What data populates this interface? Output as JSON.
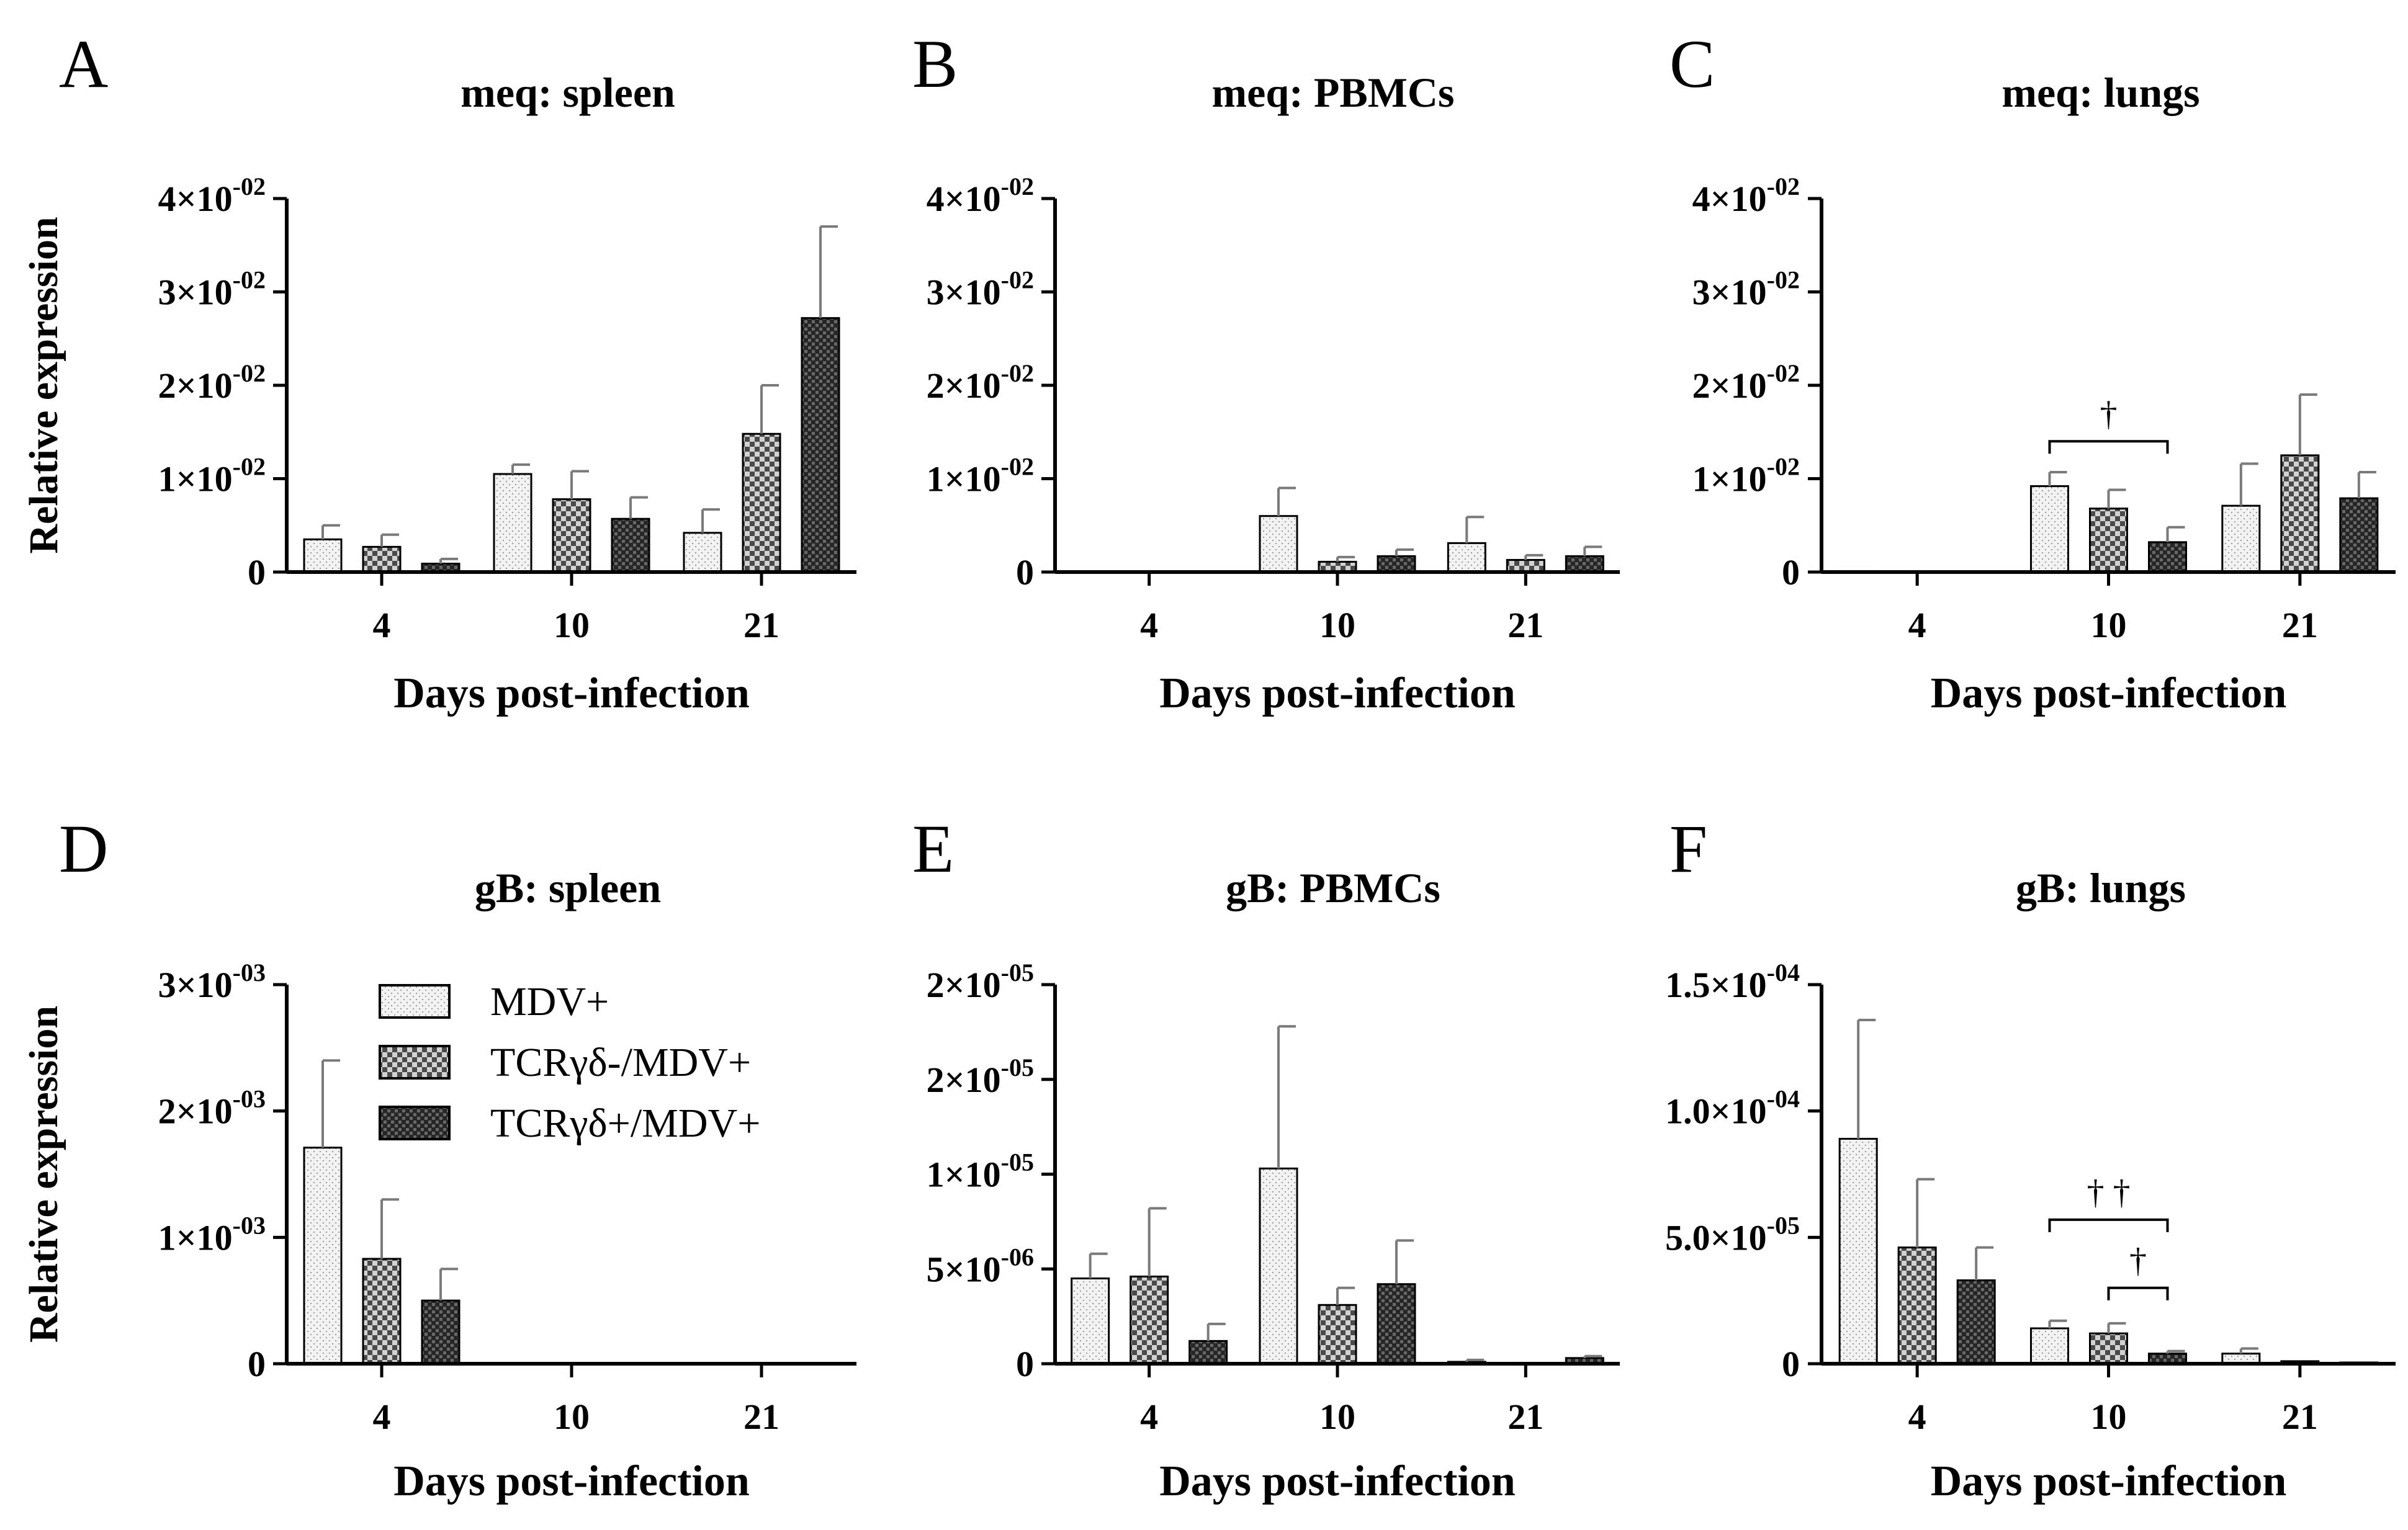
{
  "figure": {
    "legend": {
      "entries": [
        {
          "label": "MDV+",
          "pattern": "light"
        },
        {
          "label": "TCRγδ-/MDV+",
          "pattern": "mid"
        },
        {
          "label": "TCRγδ+/MDV+",
          "pattern": "dark"
        }
      ]
    }
  },
  "chart_data": [
    {
      "panel": "A",
      "type": "bar",
      "title": "meq: spleen",
      "xlabel": "Days post-infection",
      "ylabel": "Relative expression",
      "categories": [
        "4",
        "10",
        "21"
      ],
      "ylim": [
        0,
        0.04
      ],
      "yticks": [
        0,
        0.01,
        0.02,
        0.03,
        0.04
      ],
      "ytick_labels": [
        {
          "m": "0"
        },
        {
          "m": "1×10",
          "e": "-02"
        },
        {
          "m": "2×10",
          "e": "-02"
        },
        {
          "m": "3×10",
          "e": "-02"
        },
        {
          "m": "4×10",
          "e": "-02"
        }
      ],
      "series": [
        {
          "name": "MDV+",
          "values": [
            0.0035,
            0.0105,
            0.0042
          ],
          "errors": [
            0.0015,
            0.001,
            0.0025
          ]
        },
        {
          "name": "TCRγδ-/MDV+",
          "values": [
            0.0027,
            0.0078,
            0.0148
          ],
          "errors": [
            0.0013,
            0.003,
            0.0052
          ]
        },
        {
          "name": "TCRγδ+/MDV+",
          "values": [
            0.0009,
            0.0057,
            0.0272
          ],
          "errors": [
            0.0005,
            0.0023,
            0.0098
          ]
        }
      ],
      "annotations": []
    },
    {
      "panel": "B",
      "type": "bar",
      "title": "meq: PBMCs",
      "xlabel": "Days post-infection",
      "ylabel": "",
      "categories": [
        "4",
        "10",
        "21"
      ],
      "ylim": [
        0,
        0.04
      ],
      "yticks": [
        0,
        0.01,
        0.02,
        0.03,
        0.04
      ],
      "ytick_labels": [
        {
          "m": "0"
        },
        {
          "m": "1×10",
          "e": "-02"
        },
        {
          "m": "2×10",
          "e": "-02"
        },
        {
          "m": "3×10",
          "e": "-02"
        },
        {
          "m": "4×10",
          "e": "-02"
        }
      ],
      "series": [
        {
          "name": "MDV+",
          "values": [
            0,
            0.006,
            0.0031
          ],
          "errors": [
            0,
            0.003,
            0.0028
          ]
        },
        {
          "name": "TCRγδ-/MDV+",
          "values": [
            0,
            0.0011,
            0.0013
          ],
          "errors": [
            0,
            0.0005,
            0.0005
          ]
        },
        {
          "name": "TCRγδ+/MDV+",
          "values": [
            0,
            0.0017,
            0.0017
          ],
          "errors": [
            0,
            0.0007,
            0.001
          ]
        }
      ],
      "annotations": []
    },
    {
      "panel": "C",
      "type": "bar",
      "title": "meq: lungs",
      "xlabel": "Days post-infection",
      "ylabel": "",
      "categories": [
        "4",
        "10",
        "21"
      ],
      "ylim": [
        0,
        0.04
      ],
      "yticks": [
        0,
        0.01,
        0.02,
        0.03,
        0.04
      ],
      "ytick_labels": [
        {
          "m": "0"
        },
        {
          "m": "1×10",
          "e": "-02"
        },
        {
          "m": "2×10",
          "e": "-02"
        },
        {
          "m": "3×10",
          "e": "-02"
        },
        {
          "m": "4×10",
          "e": "-02"
        }
      ],
      "series": [
        {
          "name": "MDV+",
          "values": [
            0.0001,
            0.0092,
            0.0071
          ],
          "errors": [
            0,
            0.0015,
            0.0045
          ]
        },
        {
          "name": "TCRγδ-/MDV+",
          "values": [
            0,
            0.0068,
            0.0125
          ],
          "errors": [
            0,
            0.002,
            0.0065
          ]
        },
        {
          "name": "TCRγδ+/MDV+",
          "values": [
            0,
            0.0032,
            0.0079
          ],
          "errors": [
            0,
            0.0016,
            0.0028
          ]
        }
      ],
      "annotations": [
        {
          "category": "10",
          "from_series": 0,
          "to_series": 2,
          "level": 0.014,
          "label": "†"
        }
      ]
    },
    {
      "panel": "D",
      "type": "bar",
      "title": "gB: spleen",
      "xlabel": "Days post-infection",
      "ylabel": "Relative expression",
      "categories": [
        "4",
        "10",
        "21"
      ],
      "ylim": [
        0,
        0.003
      ],
      "yticks": [
        0,
        0.001,
        0.002,
        0.003
      ],
      "ytick_labels": [
        {
          "m": "0"
        },
        {
          "m": "1×10",
          "e": "-03"
        },
        {
          "m": "2×10",
          "e": "-03"
        },
        {
          "m": "3×10",
          "e": "-03"
        }
      ],
      "series": [
        {
          "name": "MDV+",
          "values": [
            0.00171,
            0,
            0
          ],
          "errors": [
            0.00069,
            0,
            0
          ]
        },
        {
          "name": "TCRγδ-/MDV+",
          "values": [
            0.00083,
            0,
            0
          ],
          "errors": [
            0.00047,
            0,
            0
          ]
        },
        {
          "name": "TCRγδ+/MDV+",
          "values": [
            0.0005,
            0,
            0
          ],
          "errors": [
            0.00025,
            0,
            0
          ]
        }
      ],
      "annotations": []
    },
    {
      "panel": "E",
      "type": "bar",
      "title": "gB: PBMCs",
      "xlabel": "Days post-infection",
      "ylabel": "",
      "categories": [
        "4",
        "10",
        "21"
      ],
      "ylim": [
        0,
        2e-05
      ],
      "yticks": [
        0,
        5e-06,
        1e-05,
        1.5e-05,
        2e-05
      ],
      "ytick_labels": [
        {
          "m": "0"
        },
        {
          "m": "5×10",
          "e": "-06"
        },
        {
          "m": "1×10",
          "e": "-05"
        },
        {
          "m": "2×10",
          "e": "-05"
        },
        {
          "m": "2×10",
          "e": "-05"
        }
      ],
      "series": [
        {
          "name": "MDV+",
          "values": [
            4.5e-06,
            1.03e-05,
            1e-07
          ],
          "errors": [
            1.3e-06,
            7.5e-06,
            1e-07
          ]
        },
        {
          "name": "TCRγδ-/MDV+",
          "values": [
            4.6e-06,
            3.1e-06,
            0
          ],
          "errors": [
            3.6e-06,
            9e-07,
            0
          ]
        },
        {
          "name": "TCRγδ+/MDV+",
          "values": [
            1.2e-06,
            4.2e-06,
            3e-07
          ],
          "errors": [
            9e-07,
            2.3e-06,
            1e-07
          ]
        }
      ],
      "annotations": []
    },
    {
      "panel": "F",
      "type": "bar",
      "title": "gB: lungs",
      "xlabel": "Days post-infection",
      "ylabel": "",
      "categories": [
        "4",
        "10",
        "21"
      ],
      "ylim": [
        0,
        0.00015
      ],
      "yticks": [
        0,
        5e-05,
        0.0001,
        0.00015
      ],
      "ytick_labels": [
        {
          "m": "0"
        },
        {
          "m": "5.0×10",
          "e": "-05"
        },
        {
          "m": "1.0×10",
          "e": "-04"
        },
        {
          "m": "1.5×10",
          "e": "-04"
        }
      ],
      "series": [
        {
          "name": "MDV+",
          "values": [
            8.9e-05,
            1.4e-05,
            4e-06
          ],
          "errors": [
            4.7e-05,
            3e-06,
            2e-06
          ]
        },
        {
          "name": "TCRγδ-/MDV+",
          "values": [
            4.6e-05,
            1.2e-05,
            1e-06
          ],
          "errors": [
            2.7e-05,
            4e-06,
            0
          ]
        },
        {
          "name": "TCRγδ+/MDV+",
          "values": [
            3.3e-05,
            4e-06,
            5e-07
          ],
          "errors": [
            1.3e-05,
            1e-06,
            0
          ]
        }
      ],
      "annotations": [
        {
          "category": "10",
          "from_series": 0,
          "to_series": 2,
          "level": 5.7e-05,
          "label": "† †"
        },
        {
          "category": "10",
          "from_series": 1,
          "to_series": 2,
          "level": 3e-05,
          "label": "†"
        }
      ]
    }
  ]
}
